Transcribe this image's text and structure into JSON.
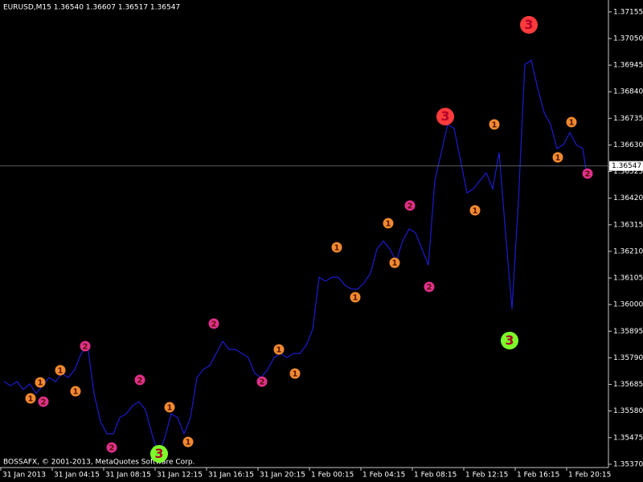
{
  "chart_data": {
    "type": "line",
    "title": "EURUSD,M15  1.36540 1.36607 1.36517 1.36547",
    "footer": "BOSSAFX, © 2001-2013, MetaQuotes Software Corp.",
    "color": "#1c1ccc",
    "x": [
      1,
      3,
      5,
      7,
      9,
      11,
      13,
      15,
      17,
      19,
      21,
      23,
      25,
      27,
      29,
      31,
      33,
      35,
      37,
      39,
      41,
      43,
      45,
      47,
      49,
      51,
      53,
      55,
      57,
      59,
      61,
      63,
      65,
      67,
      69,
      71,
      73,
      75,
      77,
      79,
      81,
      83,
      85,
      87,
      89,
      91,
      93,
      95,
      97,
      99,
      101,
      103,
      105,
      107,
      109,
      111,
      113,
      115,
      117,
      119,
      121,
      123,
      125,
      127,
      129,
      131,
      133,
      135,
      137,
      139,
      141,
      143,
      145,
      147,
      149,
      151,
      153,
      155,
      157,
      159,
      161,
      163,
      165,
      167,
      169,
      171,
      173,
      175,
      177,
      179,
      181,
      182
    ],
    "values": [
      1.35696,
      1.3568,
      1.35696,
      1.35665,
      1.35687,
      1.35649,
      1.3568,
      1.35712,
      1.35696,
      1.35728,
      1.35712,
      1.35744,
      1.35807,
      1.35839,
      1.35649,
      1.35538,
      1.3549,
      1.3549,
      1.35554,
      1.35569,
      1.35601,
      1.35617,
      1.35585,
      1.3549,
      1.35411,
      1.35474,
      1.35569,
      1.35554,
      1.3549,
      1.35554,
      1.35712,
      1.35744,
      1.3576,
      1.35807,
      1.35855,
      1.35823,
      1.35823,
      1.35807,
      1.35791,
      1.35728,
      1.35712,
      1.35744,
      1.35791,
      1.35807,
      1.35791,
      1.35807,
      1.35807,
      1.35839,
      1.35902,
      1.36108,
      1.36092,
      1.36108,
      1.36108,
      1.36077,
      1.36061,
      1.36061,
      1.36086,
      1.36124,
      1.36219,
      1.36251,
      1.36219,
      1.36172,
      1.36251,
      1.36299,
      1.36283,
      1.36219,
      1.36156,
      1.36489,
      1.366,
      1.36711,
      1.36695,
      1.36568,
      1.36441,
      1.36457,
      1.36489,
      1.3652,
      1.36457,
      1.366,
      1.36283,
      1.35982,
      1.3641,
      1.36948,
      1.36964,
      1.36853,
      1.36758,
      1.36711,
      1.36616,
      1.36631,
      1.36679,
      1.36631,
      1.36616,
      1.36536
    ],
    "xlim": [
      -0.25,
      189
    ],
    "xticks": [
      {
        "value": 0,
        "label": "31 Jan 2013"
      },
      {
        "value": 16,
        "label": "31 Jan 04:15"
      },
      {
        "value": 32,
        "label": "31 Jan 08:15"
      },
      {
        "value": 48,
        "label": "31 Jan 12:15"
      },
      {
        "value": 64,
        "label": "31 Jan 16:15"
      },
      {
        "value": 80,
        "label": "31 Jan 20:15"
      },
      {
        "value": 96,
        "label": "1 Feb 00:15"
      },
      {
        "value": 112,
        "label": "1 Feb 04:15"
      },
      {
        "value": 128,
        "label": "1 Feb 08:15"
      },
      {
        "value": 144,
        "label": "1 Feb 12:15"
      },
      {
        "value": 160,
        "label": "1 Feb 16:15"
      },
      {
        "value": 176,
        "label": "1 Feb 20:15"
      }
    ],
    "ylim": [
      1.35357,
      1.37202
    ],
    "yticks": [
      1.37155,
      {
        "value": 1.3705,
        "label": "1.37050"
      },
      1.36945,
      {
        "value": 1.3684,
        "label": "1.36840"
      },
      1.36735,
      {
        "value": 1.3663,
        "label": "1.36630"
      },
      1.36525,
      {
        "value": 1.3642,
        "label": "1.36420"
      },
      1.36315,
      {
        "value": 1.3621,
        "label": "1.36210"
      },
      1.36105,
      {
        "value": 1.36,
        "label": "1.36000"
      },
      1.35895,
      {
        "value": 1.3579,
        "label": "1.35790"
      },
      1.35685,
      {
        "value": 1.3558,
        "label": "1.35580"
      },
      1.35475,
      {
        "value": 1.3537,
        "label": "1.35370"
      }
    ],
    "grid": false,
    "current_price": 1.36547,
    "annotations": [
      {
        "text": "1",
        "x": 9.25,
        "y": 1.3563,
        "color": "#f08a30"
      },
      {
        "text": "1",
        "x": 12.25,
        "y": 1.35693,
        "color": "#f08a30"
      },
      {
        "text": "1",
        "x": 18.5,
        "y": 1.35741,
        "color": "#f08a30"
      },
      {
        "text": "1",
        "x": 23.25,
        "y": 1.35658,
        "color": "#f08a30"
      },
      {
        "text": "1",
        "x": 52.5,
        "y": 1.35595,
        "color": "#f08a30"
      },
      {
        "text": "1",
        "x": 58.25,
        "y": 1.35458,
        "color": "#f08a30"
      },
      {
        "text": "1",
        "x": 86.5,
        "y": 1.35823,
        "color": "#f08a30"
      },
      {
        "text": "1",
        "x": 91.5,
        "y": 1.35728,
        "color": "#f08a30"
      },
      {
        "text": "1",
        "x": 104.5,
        "y": 1.36226,
        "color": "#f08a30"
      },
      {
        "text": "1",
        "x": 110.25,
        "y": 1.36029,
        "color": "#f08a30"
      },
      {
        "text": "1",
        "x": 120.5,
        "y": 1.36321,
        "color": "#f08a30"
      },
      {
        "text": "1",
        "x": 122.5,
        "y": 1.36165,
        "color": "#f08a30"
      },
      {
        "text": "1",
        "x": 147.5,
        "y": 1.36372,
        "color": "#f08a30"
      },
      {
        "text": "1",
        "x": 153.5,
        "y": 1.36711,
        "color": "#f08a30"
      },
      {
        "text": "1",
        "x": 173.25,
        "y": 1.36581,
        "color": "#f08a30"
      },
      {
        "text": "1",
        "x": 177.5,
        "y": 1.3672,
        "color": "#f08a30"
      },
      {
        "text": "2",
        "x": 13.25,
        "y": 1.35617,
        "color": "#e0308c"
      },
      {
        "text": "2",
        "x": 26.25,
        "y": 1.35836,
        "color": "#e0308c"
      },
      {
        "text": "2",
        "x": 34.5,
        "y": 1.35436,
        "color": "#e0308c"
      },
      {
        "text": "2",
        "x": 43.25,
        "y": 1.35703,
        "color": "#e0308c"
      },
      {
        "text": "2",
        "x": 66.25,
        "y": 1.35925,
        "color": "#e0308c"
      },
      {
        "text": "2",
        "x": 81.25,
        "y": 1.35696,
        "color": "#e0308c"
      },
      {
        "text": "2",
        "x": 127.25,
        "y": 1.36391,
        "color": "#e0308c"
      },
      {
        "text": "2",
        "x": 133.25,
        "y": 1.3607,
        "color": "#e0308c"
      },
      {
        "text": "2",
        "x": 182.5,
        "y": 1.36517,
        "color": "#e0308c"
      },
      {
        "text": "3",
        "x": 138.25,
        "y": 1.36742,
        "color": "#ff3b3b"
      },
      {
        "text": "3",
        "x": 164.25,
        "y": 1.37104,
        "color": "#ff3b3b"
      },
      {
        "text": "3",
        "x": 49.25,
        "y": 1.35411,
        "color": "#7cff2a"
      },
      {
        "text": "3",
        "x": 158.25,
        "y": 1.35858,
        "color": "#7cff2a"
      }
    ]
  }
}
